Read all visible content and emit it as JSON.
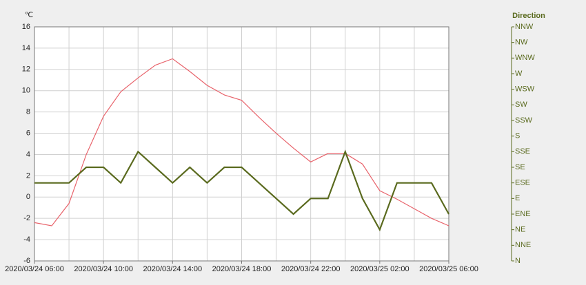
{
  "chart_data": {
    "type": "line",
    "y_label": "℃",
    "y2_label": "Direction",
    "x": [
      "2020/03/24 06:00",
      "2020/03/24 07:00",
      "2020/03/24 08:00",
      "2020/03/24 09:00",
      "2020/03/24 10:00",
      "2020/03/24 11:00",
      "2020/03/24 12:00",
      "2020/03/24 13:00",
      "2020/03/24 14:00",
      "2020/03/24 15:00",
      "2020/03/24 16:00",
      "2020/03/24 17:00",
      "2020/03/24 18:00",
      "2020/03/24 19:00",
      "2020/03/24 20:00",
      "2020/03/24 21:00",
      "2020/03/24 22:00",
      "2020/03/24 23:00",
      "2020/03/25 00:00",
      "2020/03/25 01:00",
      "2020/03/25 02:00",
      "2020/03/25 03:00",
      "2020/03/25 04:00",
      "2020/03/25 05:00",
      "2020/03/25 06:00"
    ],
    "xticks": [
      "2020/03/24 06:00",
      "2020/03/24 10:00",
      "2020/03/24 14:00",
      "2020/03/24 18:00",
      "2020/03/24 22:00",
      "2020/03/25 02:00",
      "2020/03/25 06:00"
    ],
    "ylim": [
      -6,
      16
    ],
    "yticks": [
      -6,
      -4,
      -2,
      0,
      2,
      4,
      6,
      8,
      10,
      12,
      14,
      16
    ],
    "y2categories": [
      "N",
      "NNE",
      "NE",
      "ENE",
      "E",
      "ESE",
      "SE",
      "SSE",
      "S",
      "SSW",
      "SW",
      "WSW",
      "W",
      "WNW",
      "NW",
      "NNW"
    ],
    "grid": true,
    "series": [
      {
        "color": "#e8636b",
        "values": [
          -2.4,
          -2.7,
          -0.6,
          4.0,
          7.6,
          9.9,
          11.2,
          12.4,
          13.0,
          11.8,
          10.5,
          9.6,
          9.1,
          7.5,
          6.0,
          4.6,
          3.3,
          4.1,
          4.1,
          3.1,
          0.6,
          -0.2,
          -1.1,
          -2.0,
          -2.7
        ]
      },
      {
        "color": "#5a6a1e",
        "axis": "y2",
        "values": [
          "ESE",
          "ESE",
          "ESE",
          "SE",
          "SE",
          "ESE",
          "SSE",
          "SE",
          "ESE",
          "SE",
          "ESE",
          "SE",
          "SE",
          "ESE",
          "E",
          "ENE",
          "E",
          "E",
          "SSE",
          "E",
          "NE",
          "ESE",
          "ESE",
          "ESE",
          "ENE"
        ]
      }
    ]
  }
}
